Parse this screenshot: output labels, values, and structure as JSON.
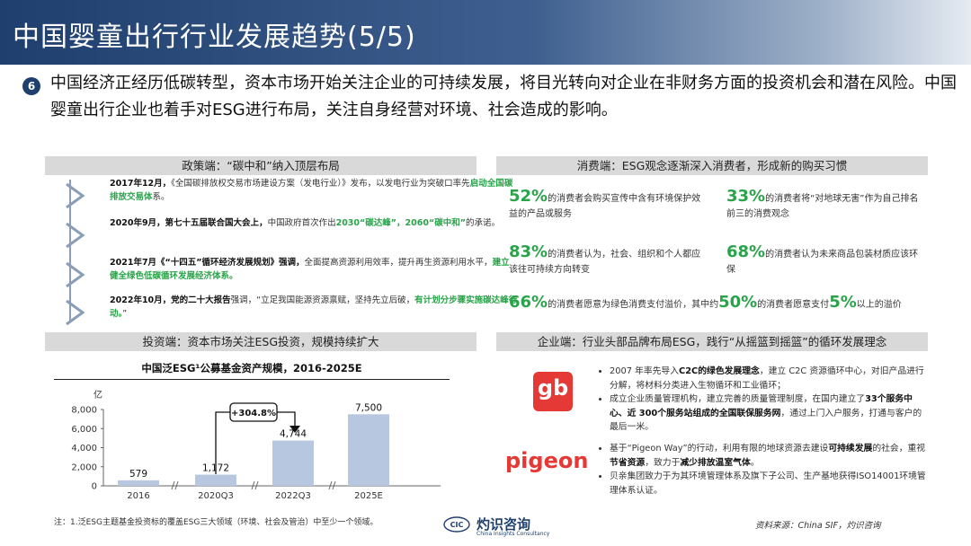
{
  "title": "中国婴童出行行业发展趋势(5/5)",
  "intro": {
    "badge": "6",
    "text": "中国经济正经历低碳转型，资本市场开始关注企业的可持续发展，将目光转向对企业在非财务方面的投资机会和潜在风险。中国婴童出行企业也着手对ESG进行布局，关注自身经营对环境、社会造成的影响。"
  },
  "policy": {
    "header": "政策端：“碳中和”纳入顶层布局",
    "items": [
      {
        "bold": "2017年12月，",
        "text": "《全国碳排放权交易市场建设方案（发电行业）》发布，以发电行业为突破口率先",
        "green": "启动全国碳排放交易体",
        "tail": "系。"
      },
      {
        "bold": "2020年9月，第七十五届联合国大会上，",
        "text": "中国政府首次作出",
        "green": "2030“碳达峰”，2060“碳中和”",
        "tail": "的承诺。"
      },
      {
        "bold": "2021年7月《“十四五”循环经济发展规划》强调，",
        "text": "全面提高资源利用效率，提升再生资源利用水平，",
        "green": "建立健全绿色低碳循环发展经济体系。",
        "tail": ""
      },
      {
        "bold": "2022年10月，党的二十大报告",
        "text": "强调，“立足我国能源资源禀赋，坚持先立后破，",
        "green": "有计划分步骤实施碳达峰行动。",
        "tail": "”"
      }
    ]
  },
  "consumer": {
    "header": "消费端：ESG观念逐渐深入消费者，形成新的购买习惯",
    "stats": [
      {
        "pct": "52%",
        "text": "的消费者会购买宣传中含有环境保护效益的产品或服务"
      },
      {
        "pct": "33%",
        "text": "的消费者将“对地球无害”作为自己排名前三的消费观念"
      },
      {
        "pct": "83%",
        "text": "的消费者认为，社会、组织和个人都应该往可持续方向转变"
      },
      {
        "pct": "68%",
        "text": "的消费者认为未来商品包装材质应该环保"
      }
    ],
    "stat5": {
      "pct1": "66%",
      "text1": "的消费者愿意为绿色消费支付溢价，其中约",
      "pct2": "50%",
      "text2": "的消费者愿意支付",
      "pct3": "5%",
      "text3": "以上的溢价"
    }
  },
  "investment": {
    "header": "投资端：资本市场关注ESG投资，规模持续扩大",
    "chart_title": "中国泛ESG¹公募基金资产规模，2016-2025E"
  },
  "chart_data": {
    "type": "bar",
    "title": "中国泛ESG¹公募基金资产规模，2016-2025E",
    "ylabel": "亿",
    "categories": [
      "2016",
      "2020Q3",
      "2022Q3",
      "2025E"
    ],
    "values": [
      579,
      1172,
      4744,
      7500
    ],
    "value_labels": [
      "579",
      "1,172",
      "4,744",
      "7,500"
    ],
    "yticks": [
      0,
      2000,
      4000,
      6000,
      8000
    ],
    "ytick_labels": [
      "0",
      "2,000",
      "4,000",
      "6,000",
      "8,000"
    ],
    "ylim": [
      0,
      8000
    ],
    "annotation": "+304.8%",
    "bar_color": "#b8c7e0",
    "grid": false
  },
  "enterprise": {
    "header": "企业端：行业头部品牌布局ESG，践行“从摇篮到摇篮”的循环发展理念",
    "gb_logo": "gb",
    "pigeon_logo": "pigeon",
    "gb_points": [
      {
        "pre": "2007 年率先导入",
        "bold": "C2C的绿色发展理念",
        "post": "，建立 C2C 资源循环中心，对旧产品进行分解，将材料分类进入生物循环和工业循环；"
      },
      {
        "pre": "成立企业质量管理机构，建立完善的质量管理制度，在国内建立了",
        "bold": "33个服务中心、近 300个服务站组成的全国联保服务网",
        "post": "，通过上门入户服务，打通与客户的最后一米。"
      }
    ],
    "pigeon_points": [
      {
        "pre": "基于“Pigeon Way”的行动，利用有限的地球资源去建设",
        "bold": "可持续发展",
        "mid": "的社会，重视",
        "bold2": "节省资源",
        "mid2": "，致力于",
        "bold3": "减少排放温室气体",
        "post": "。"
      },
      {
        "pre": "贝亲集团致力于为其环境管理体系及旗下子公司、生产基地获得ISO14001环境管理体系认证。",
        "bold": "",
        "post": ""
      }
    ]
  },
  "footer": {
    "note": "注：1.泛ESG主题基金投资标的覆盖ESG三大领域（环境、社会及管治）中至少一个领域。",
    "logo_abbr": "CIC",
    "logo_name": "灼识咨询",
    "logo_sub": "China Insights Consultancy",
    "source": "资料来源：China SIF，灼识咨询"
  }
}
